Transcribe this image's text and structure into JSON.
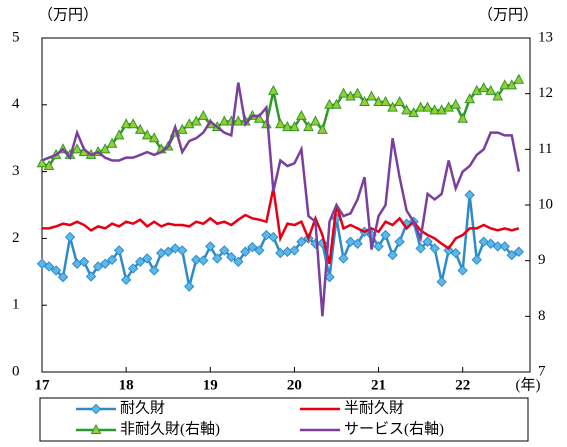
{
  "chart_data": {
    "type": "line",
    "y_label": "（万円）",
    "y2_label": "（万円）",
    "x_unit": "(年)",
    "xlim": [
      17,
      22.8
    ],
    "xticks": [
      17,
      18,
      19,
      20,
      21,
      22
    ],
    "ylim": [
      0,
      5
    ],
    "yticks": [
      0,
      1,
      2,
      3,
      4,
      5
    ],
    "y2lim": [
      7,
      13
    ],
    "y2ticks": [
      7,
      8,
      9,
      10,
      11,
      12,
      13
    ],
    "x": [
      17,
      17.083,
      17.167,
      17.25,
      17.333,
      17.417,
      17.5,
      17.583,
      17.667,
      17.75,
      17.833,
      17.917,
      18,
      18.083,
      18.167,
      18.25,
      18.333,
      18.417,
      18.5,
      18.583,
      18.667,
      18.75,
      18.833,
      18.917,
      19,
      19.083,
      19.167,
      19.25,
      19.333,
      19.417,
      19.5,
      19.583,
      19.667,
      19.75,
      19.833,
      19.917,
      20,
      20.083,
      20.167,
      20.25,
      20.333,
      20.417,
      20.5,
      20.583,
      20.667,
      20.75,
      20.833,
      20.917,
      21,
      21.083,
      21.167,
      21.25,
      21.333,
      21.417,
      21.5,
      21.583,
      21.667,
      21.75,
      21.833,
      21.917,
      22,
      22.083,
      22.167,
      22.25,
      22.333,
      22.417,
      22.5,
      22.583,
      22.667
    ],
    "series": [
      {
        "name": "耐久財",
        "color": "#2e8bc9",
        "marker": "diamond",
        "values": [
          1.62,
          1.58,
          1.52,
          1.42,
          2.02,
          1.62,
          1.65,
          1.43,
          1.58,
          1.62,
          1.68,
          1.82,
          1.38,
          1.55,
          1.65,
          1.7,
          1.52,
          1.78,
          1.8,
          1.85,
          1.82,
          1.28,
          1.68,
          1.67,
          1.88,
          1.7,
          1.82,
          1.72,
          1.65,
          1.8,
          1.87,
          1.82,
          2.05,
          2.02,
          1.78,
          1.8,
          1.82,
          1.95,
          2.0,
          1.92,
          1.93,
          1.42,
          2.3,
          1.7,
          1.95,
          1.92,
          2.1,
          2.05,
          1.88,
          2.05,
          1.75,
          1.95,
          2.22,
          2.25,
          1.85,
          1.95,
          1.85,
          1.35,
          1.82,
          1.78,
          1.52,
          2.65,
          1.68,
          1.95,
          1.92,
          1.88,
          1.88,
          1.75,
          1.8
        ]
      },
      {
        "name": "半耐久財",
        "color": "#e60012",
        "values": [
          2.15,
          2.15,
          2.18,
          2.22,
          2.2,
          2.25,
          2.2,
          2.12,
          2.18,
          2.15,
          2.22,
          2.18,
          2.25,
          2.22,
          2.28,
          2.18,
          2.25,
          2.18,
          2.22,
          2.2,
          2.2,
          2.18,
          2.25,
          2.22,
          2.3,
          2.22,
          2.25,
          2.2,
          2.28,
          2.35,
          2.3,
          2.28,
          2.25,
          2.75,
          2.0,
          2.22,
          2.2,
          2.25,
          2.0,
          2.3,
          2.05,
          1.62,
          2.5,
          2.15,
          2.2,
          2.15,
          2.1,
          2.15,
          2.1,
          2.25,
          2.2,
          2.3,
          2.15,
          2.25,
          2.12,
          2.05,
          2.0,
          1.92,
          1.85,
          2.0,
          2.05,
          2.15,
          2.15,
          2.2,
          2.15,
          2.12,
          2.15,
          2.12,
          2.15
        ]
      },
      {
        "name": "非耐久財(右軸)",
        "color": "#2a9a2a",
        "marker": "triangle",
        "marker_color": "#99cc33",
        "axis": "y2",
        "values": [
          10.75,
          10.7,
          10.9,
          11.0,
          10.9,
          11.0,
          10.95,
          10.9,
          10.95,
          11.0,
          11.1,
          11.25,
          11.45,
          11.45,
          11.35,
          11.25,
          11.2,
          11.0,
          11.05,
          11.3,
          11.35,
          11.45,
          11.5,
          11.6,
          11.45,
          11.4,
          11.5,
          11.5,
          11.5,
          11.5,
          11.6,
          11.55,
          11.45,
          12.05,
          11.45,
          11.4,
          11.4,
          11.6,
          11.4,
          11.5,
          11.35,
          11.8,
          11.8,
          12.0,
          11.95,
          12.0,
          11.85,
          11.95,
          11.85,
          11.85,
          11.75,
          11.85,
          11.7,
          11.65,
          11.75,
          11.75,
          11.7,
          11.7,
          11.75,
          11.8,
          11.55,
          11.9,
          12.05,
          12.1,
          12.05,
          11.95,
          12.15,
          12.15,
          12.25
        ]
      },
      {
        "name": "サービス(右軸)",
        "color": "#7b3f9e",
        "axis": "y2",
        "values": [
          10.8,
          10.85,
          10.9,
          11.0,
          10.85,
          11.3,
          11.0,
          10.9,
          10.95,
          10.85,
          10.8,
          10.8,
          10.85,
          10.85,
          10.9,
          10.95,
          10.9,
          10.95,
          11.05,
          11.4,
          10.95,
          11.15,
          11.2,
          11.3,
          11.5,
          11.4,
          11.3,
          11.25,
          12.2,
          11.45,
          11.6,
          11.6,
          11.75,
          10.25,
          10.8,
          10.7,
          10.75,
          11.0,
          9.8,
          9.7,
          8.0,
          9.7,
          10.0,
          9.8,
          9.85,
          10.1,
          10.5,
          9.2,
          9.8,
          10.0,
          11.2,
          10.5,
          9.9,
          9.7,
          9.4,
          10.2,
          10.1,
          10.2,
          10.8,
          10.3,
          10.6,
          10.7,
          10.9,
          11.0,
          11.3,
          11.3,
          11.25,
          11.25,
          10.6
        ]
      }
    ]
  }
}
